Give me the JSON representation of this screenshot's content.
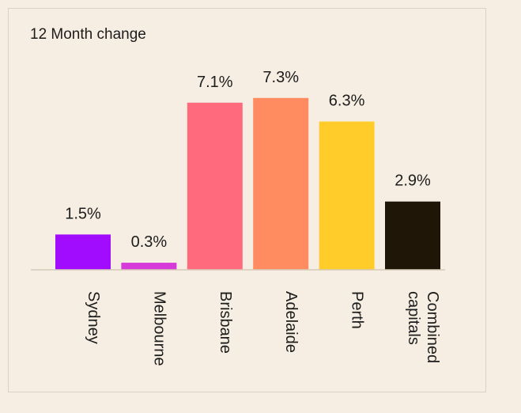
{
  "chart_data": {
    "type": "bar",
    "title": "12 Month change",
    "categories": [
      "Sydney",
      "Melbourne",
      "Brisbane",
      "Adelaide",
      "Perth",
      "Combined capitals"
    ],
    "values": [
      1.5,
      0.3,
      7.1,
      7.3,
      6.3,
      2.9
    ],
    "value_labels": [
      "1.5%",
      "0.3%",
      "7.1%",
      "7.3%",
      "6.3%",
      "2.9%"
    ],
    "colors": [
      "#a10cff",
      "#d63ad9",
      "#ff6b7c",
      "#ff8c60",
      "#ffcc2a",
      "#1f1608"
    ],
    "ylim": [
      0,
      8
    ],
    "grid": false,
    "legend": "none",
    "xlabel": "",
    "ylabel": ""
  }
}
